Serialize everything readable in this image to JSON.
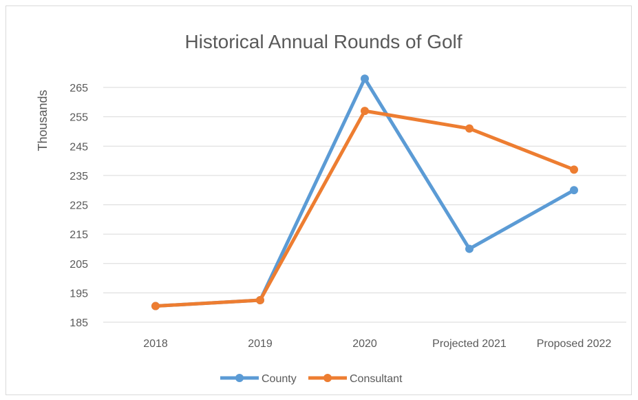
{
  "chart_data": {
    "type": "line",
    "title": "Historical Annual Rounds of Golf",
    "xlabel": "",
    "ylabel": "Thousands",
    "categories": [
      "2018",
      "2019",
      "2020",
      "Projected 2021",
      "Proposed 2022"
    ],
    "ylim": [
      185,
      265
    ],
    "yticks": [
      185,
      195,
      205,
      215,
      225,
      235,
      245,
      255,
      265
    ],
    "grid": true,
    "legend_position": "bottom",
    "series": [
      {
        "name": "County",
        "color": "#5b9bd5",
        "values": [
          190.5,
          192.5,
          268,
          210,
          230
        ]
      },
      {
        "name": "Consultant",
        "color": "#ed7d31",
        "values": [
          190.5,
          192.5,
          257,
          251,
          237
        ]
      }
    ]
  }
}
